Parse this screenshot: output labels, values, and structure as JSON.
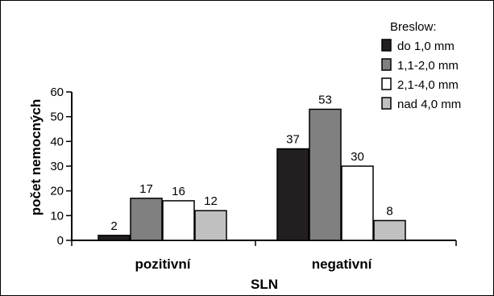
{
  "chart_data": {
    "type": "bar",
    "categories": [
      "pozitivní",
      "negativní"
    ],
    "series": [
      {
        "name": "do 1,0 mm",
        "values": [
          2,
          37
        ],
        "color": "#231f20"
      },
      {
        "name": "1,1-2,0 mm",
        "values": [
          17,
          53
        ],
        "color": "#808080"
      },
      {
        "name": "2,1-4,0 mm",
        "values": [
          16,
          30
        ],
        "color": "#ffffff"
      },
      {
        "name": "nad 4,0 mm",
        "values": [
          12,
          8
        ],
        "color": "#c0c0c0"
      }
    ],
    "legend_title": "Breslow:",
    "xlabel": "SLN",
    "ylabel": "počet nemocných",
    "ylim": [
      0,
      60
    ],
    "yticks": [
      0,
      10,
      20,
      30,
      40,
      50,
      60
    ],
    "legend_position": "top-right",
    "grid": false
  }
}
